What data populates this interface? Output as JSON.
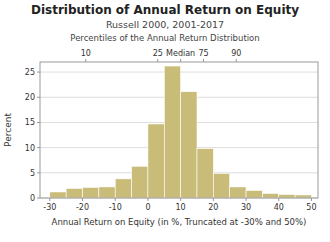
{
  "chart_data": {
    "type": "histogram",
    "title": "Distribution of Annual Return on Equity",
    "subtitle": "Russell 2000, 2001-2017",
    "top_axis_label": "Percentiles of the Annual Return Distribution",
    "xlabel": "Annual Return on Equity (in %, Truncated at -30% and 50%)",
    "ylabel": "Percent",
    "bins": [
      -30,
      -25,
      -20,
      -15,
      -10,
      -5,
      0,
      5,
      10,
      15,
      20,
      25,
      30,
      35,
      40,
      45,
      50
    ],
    "values": [
      1.2,
      1.9,
      2.1,
      2.2,
      3.8,
      6.3,
      14.7,
      26.2,
      21.1,
      9.8,
      4.9,
      2.2,
      1.5,
      0.9,
      0.7,
      0.6
    ],
    "color": "#C8BC78",
    "xlim": [
      -33,
      52
    ],
    "ylim": [
      0,
      27
    ],
    "xticks": [
      -30,
      -20,
      -10,
      0,
      10,
      20,
      30,
      40,
      50
    ],
    "yticks": [
      0,
      5,
      10,
      15,
      20,
      25
    ],
    "x2ticks": [
      {
        "value": -19,
        "label": "10"
      },
      {
        "value": 3,
        "label": "25"
      },
      {
        "value": 10,
        "label": "Median"
      },
      {
        "value": 17,
        "label": "75"
      },
      {
        "value": 27,
        "label": "90"
      }
    ],
    "grid": true
  }
}
